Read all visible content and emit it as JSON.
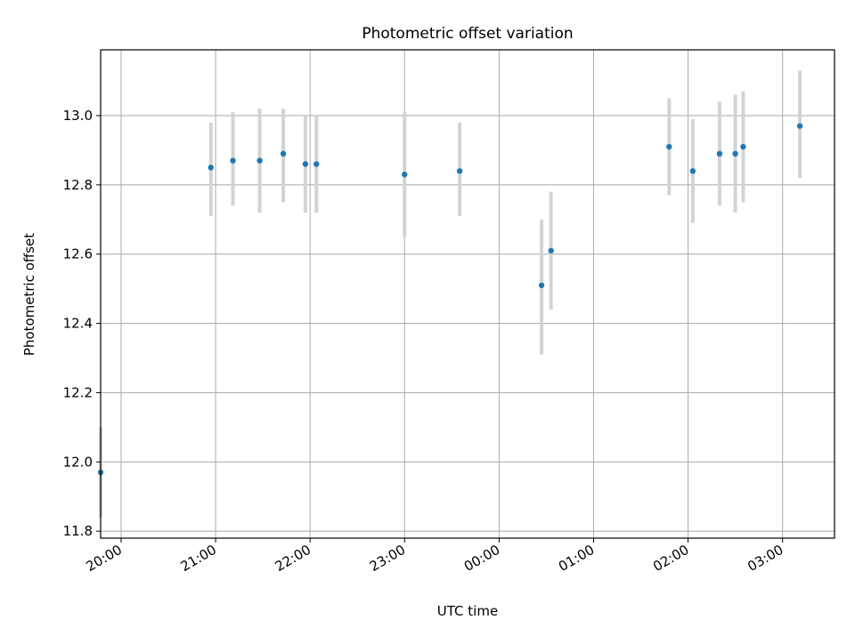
{
  "chart_data": {
    "type": "scatter",
    "title": "Photometric offset variation",
    "xlabel": "UTC time",
    "ylabel": "Photometric offset",
    "xlim": [
      "19:47",
      "03:33"
    ],
    "ylim": [
      11.78,
      13.19
    ],
    "grid": true,
    "x_ticks": [
      "20:00",
      "21:00",
      "22:00",
      "23:00",
      "00:00",
      "01:00",
      "02:00",
      "03:00"
    ],
    "y_ticks": [
      11.8,
      12.0,
      12.2,
      12.4,
      12.6,
      12.8,
      13.0
    ],
    "x_tick_labels": [
      "20:00",
      "21:00",
      "22:00",
      "23:00",
      "00:00",
      "01:00",
      "02:00",
      "03:00"
    ],
    "y_tick_labels": [
      "11.8",
      "12.0",
      "12.2",
      "12.4",
      "12.6",
      "12.8",
      "13.0"
    ],
    "colors": {
      "point": "#1f77b4",
      "errorbar": "#d3d3d3",
      "grid": "#b0b0b0"
    },
    "points": [
      {
        "x": "19:47",
        "y": 11.97,
        "lo": 11.84,
        "hi": 12.1
      },
      {
        "x": "20:57",
        "y": 12.85,
        "lo": 12.71,
        "hi": 12.98
      },
      {
        "x": "21:11",
        "y": 12.87,
        "lo": 12.74,
        "hi": 13.01
      },
      {
        "x": "21:28",
        "y": 12.87,
        "lo": 12.72,
        "hi": 13.02
      },
      {
        "x": "21:43",
        "y": 12.89,
        "lo": 12.75,
        "hi": 13.02
      },
      {
        "x": "21:57",
        "y": 12.86,
        "lo": 12.72,
        "hi": 13.0
      },
      {
        "x": "22:04",
        "y": 12.86,
        "lo": 12.72,
        "hi": 13.0
      },
      {
        "x": "23:00",
        "y": 12.83,
        "lo": 12.65,
        "hi": 13.01
      },
      {
        "x": "23:35",
        "y": 12.84,
        "lo": 12.71,
        "hi": 12.98
      },
      {
        "x": "00:27",
        "y": 12.51,
        "lo": 12.31,
        "hi": 12.7
      },
      {
        "x": "00:33",
        "y": 12.61,
        "lo": 12.44,
        "hi": 12.78
      },
      {
        "x": "01:48",
        "y": 12.91,
        "lo": 12.77,
        "hi": 13.05
      },
      {
        "x": "02:03",
        "y": 12.84,
        "lo": 12.69,
        "hi": 12.99
      },
      {
        "x": "02:20",
        "y": 12.89,
        "lo": 12.74,
        "hi": 13.04
      },
      {
        "x": "02:30",
        "y": 12.89,
        "lo": 12.72,
        "hi": 13.06
      },
      {
        "x": "02:35",
        "y": 12.91,
        "lo": 12.75,
        "hi": 13.07
      },
      {
        "x": "03:11",
        "y": 12.97,
        "lo": 12.82,
        "hi": 13.13
      }
    ]
  }
}
